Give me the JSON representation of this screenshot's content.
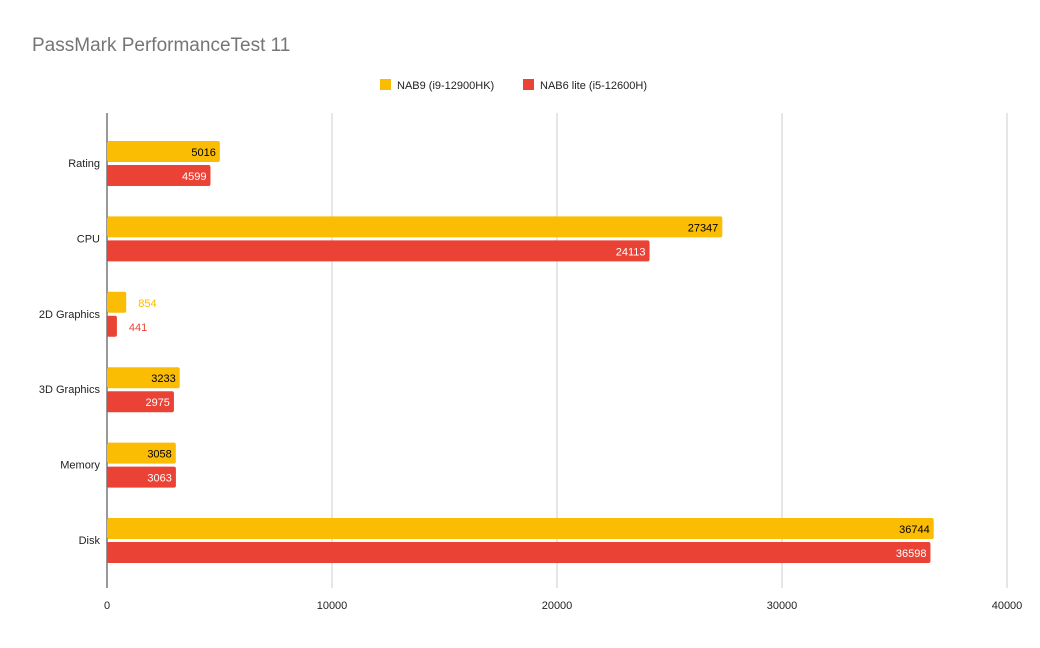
{
  "chart_data": {
    "type": "bar",
    "orientation": "horizontal",
    "title": "PassMark PerformanceTest 11",
    "categories": [
      "Rating",
      "CPU",
      "2D Graphics",
      "3D Graphics",
      "Memory",
      "Disk"
    ],
    "series": [
      {
        "name": "NAB9 (i9-12900HK)",
        "color": "#fbbc04",
        "values": [
          5016,
          27347,
          854,
          3233,
          3058,
          36744
        ]
      },
      {
        "name": "NAB6 lite (i5-12600H)",
        "color": "#ea4335",
        "values": [
          4599,
          24113,
          441,
          2975,
          3063,
          36598
        ]
      }
    ],
    "xlim": [
      0,
      40000
    ],
    "xticks": [
      "0",
      "10000",
      "20000",
      "30000",
      "40000"
    ],
    "grid": true,
    "legend": "top"
  }
}
